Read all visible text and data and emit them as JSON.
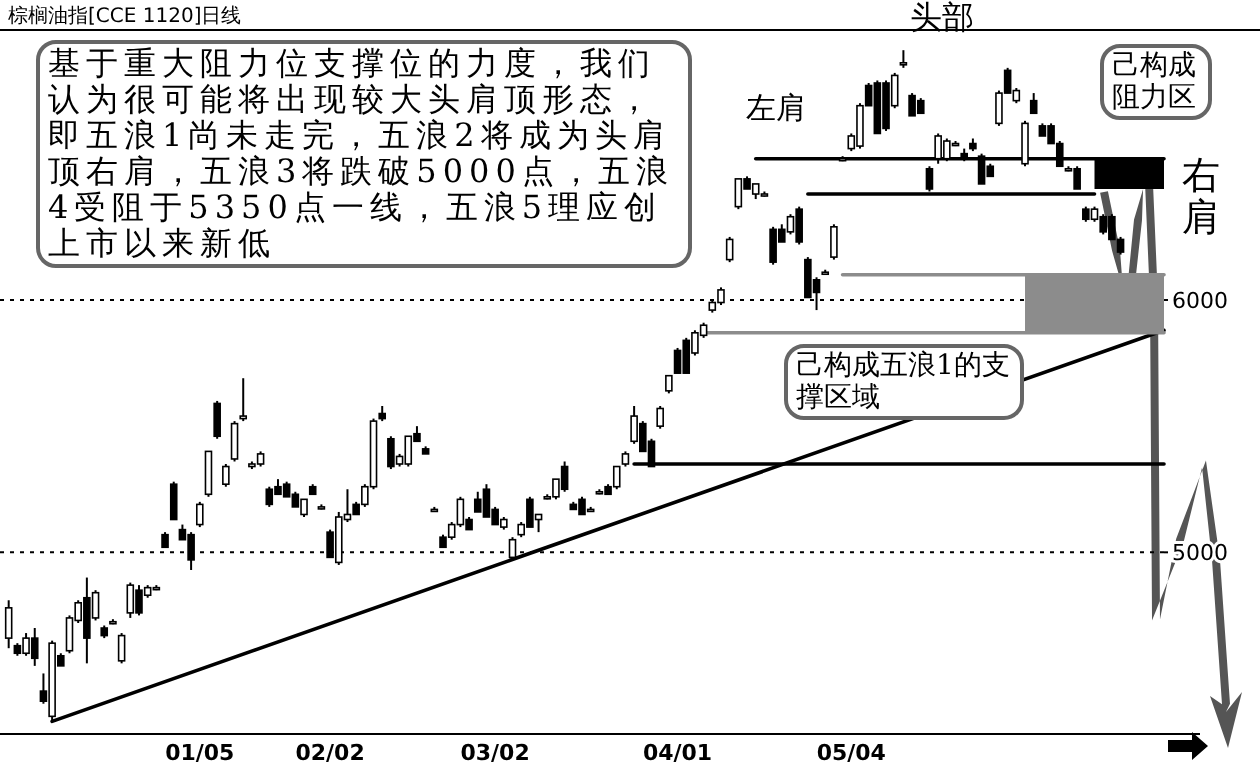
{
  "chart_data": {
    "type": "candlestick",
    "title": "棕榈油指[CCE 1120]日线",
    "categories": [
      null,
      null,
      null,
      null,
      null,
      null,
      null,
      null,
      null,
      null,
      null,
      null,
      null,
      null,
      null,
      null,
      null,
      null,
      null,
      null,
      null,
      null,
      "01/05",
      null,
      null,
      null,
      null,
      null,
      null,
      null,
      null,
      null,
      null,
      null,
      null,
      null,
      null,
      "02/02",
      null,
      null,
      null,
      null,
      null,
      null,
      null,
      null,
      null,
      null,
      null,
      null,
      null,
      null,
      null,
      null,
      null,
      null,
      "03/02",
      null,
      null,
      null,
      null,
      null,
      null,
      null,
      null,
      null,
      null,
      null,
      null,
      null,
      null,
      null,
      null,
      null,
      null,
      null,
      null,
      "04/01",
      null,
      null,
      null,
      null,
      null,
      null,
      null,
      null,
      null,
      null,
      null,
      null,
      null,
      null,
      null,
      null,
      null,
      null,
      null,
      "05/04",
      null,
      null,
      null,
      null,
      null,
      null,
      null,
      null,
      null,
      null,
      null,
      null,
      null,
      null,
      null,
      null,
      null,
      null,
      null,
      null,
      null,
      null,
      null,
      null,
      null,
      null,
      null,
      null,
      null,
      null,
      null,
      null,
      null,
      null,
      null,
      null
    ],
    "ohlc": [
      [
        4660,
        4810,
        4620,
        4780
      ],
      [
        4630,
        4640,
        4590,
        4600
      ],
      [
        4600,
        4680,
        4590,
        4660
      ],
      [
        4660,
        4700,
        4550,
        4580
      ],
      [
        4450,
        4520,
        4400,
        4410
      ],
      [
        4350,
        4650,
        4330,
        4640
      ],
      [
        4590,
        4600,
        4550,
        4550
      ],
      [
        4610,
        4750,
        4600,
        4740
      ],
      [
        4730,
        4810,
        4720,
        4800
      ],
      [
        4820,
        4900,
        4560,
        4660
      ],
      [
        4740,
        4850,
        4730,
        4840
      ],
      [
        4700,
        4710,
        4660,
        4670
      ],
      [
        4725,
        4735,
        4715,
        4725
      ],
      [
        4570,
        4680,
        4560,
        4670
      ],
      [
        4760,
        4880,
        4740,
        4870
      ],
      [
        4850,
        4870,
        4750,
        4760
      ],
      [
        4830,
        4870,
        4820,
        4860
      ],
      [
        4860,
        4870,
        4850,
        4860
      ],
      [
        5070,
        5080,
        5020,
        5020
      ],
      [
        5270,
        5280,
        5130,
        5130
      ],
      [
        5090,
        5110,
        5050,
        5050
      ],
      [
        5070,
        5080,
        4930,
        4970
      ],
      [
        5110,
        5200,
        5100,
        5190
      ],
      [
        5230,
        5400,
        5220,
        5400
      ],
      [
        5590,
        5600,
        5450,
        5460
      ],
      [
        5270,
        5350,
        5260,
        5340
      ],
      [
        5370,
        5520,
        5360,
        5510
      ],
      [
        5530,
        5690,
        5520,
        5540
      ],
      [
        5340,
        5360,
        5330,
        5350
      ],
      [
        5350,
        5400,
        5340,
        5390
      ],
      [
        5250,
        5260,
        5180,
        5190
      ],
      [
        5260,
        5290,
        5230,
        5230
      ],
      [
        5270,
        5280,
        5220,
        5220
      ],
      [
        5230,
        5240,
        5180,
        5180
      ],
      [
        5150,
        5210,
        5140,
        5210
      ],
      [
        5260,
        5270,
        5230,
        5230
      ],
      [
        5180,
        5190,
        5170,
        5180
      ],
      [
        5080,
        5090,
        4980,
        4980
      ],
      [
        4960,
        5160,
        4950,
        5140
      ],
      [
        5130,
        5250,
        5120,
        5150
      ],
      [
        5190,
        5200,
        5150,
        5150
      ],
      [
        5190,
        5270,
        5180,
        5260
      ],
      [
        5260,
        5530,
        5250,
        5520
      ],
      [
        5550,
        5580,
        5520,
        5530
      ],
      [
        5450,
        5460,
        5330,
        5340
      ],
      [
        5350,
        5390,
        5340,
        5380
      ],
      [
        5350,
        5460,
        5340,
        5460
      ],
      [
        5470,
        5500,
        5440,
        5440
      ],
      [
        5410,
        5420,
        5390,
        5390
      ],
      [
        5170,
        5180,
        5160,
        5170
      ],
      [
        5060,
        5070,
        5020,
        5020
      ],
      [
        5060,
        5120,
        5050,
        5110
      ],
      [
        5110,
        5220,
        5100,
        5210
      ],
      [
        5130,
        5140,
        5090,
        5090
      ],
      [
        5210,
        5240,
        5160,
        5160
      ],
      [
        5250,
        5270,
        5140,
        5140
      ],
      [
        5170,
        5180,
        5110,
        5110
      ],
      [
        5100,
        5140,
        5090,
        5130
      ],
      [
        4980,
        5060,
        4970,
        5050
      ],
      [
        5070,
        5120,
        5060,
        5110
      ],
      [
        5210,
        5220,
        5100,
        5100
      ],
      [
        5130,
        5150,
        5080,
        5150
      ],
      [
        5220,
        5230,
        5210,
        5220
      ],
      [
        5220,
        5290,
        5210,
        5290
      ],
      [
        5340,
        5360,
        5240,
        5250
      ],
      [
        5190,
        5200,
        5170,
        5170
      ],
      [
        5210,
        5220,
        5150,
        5150
      ],
      [
        5170,
        5180,
        5160,
        5170
      ],
      [
        5240,
        5250,
        5230,
        5240
      ],
      [
        5260,
        5270,
        5230,
        5230
      ],
      [
        5260,
        5340,
        5250,
        5340
      ],
      [
        5350,
        5400,
        5340,
        5390
      ],
      [
        5440,
        5580,
        5430,
        5540
      ],
      [
        5510,
        5520,
        5400,
        5400
      ],
      [
        5440,
        5450,
        5340,
        5340
      ],
      [
        5500,
        5580,
        5490,
        5570
      ],
      [
        5640,
        5700,
        5630,
        5700
      ],
      [
        5800,
        5810,
        5710,
        5710
      ],
      [
        5840,
        5850,
        5710,
        5710
      ],
      [
        5790,
        5880,
        5780,
        5870
      ],
      [
        5860,
        5910,
        5850,
        5900
      ],
      [
        5960,
        6000,
        5950,
        5990
      ],
      [
        5990,
        6050,
        5980,
        6040
      ],
      [
        6160,
        6250,
        6150,
        6240
      ],
      [
        6370,
        6480,
        6360,
        6480
      ],
      [
        6480,
        6490,
        6440,
        6440
      ],
      [
        6420,
        6460,
        6400,
        6460
      ],
      [
        6420,
        6430,
        6410,
        6420
      ],
      [
        6280,
        6290,
        6140,
        6150
      ],
      [
        6280,
        6300,
        6230,
        6230
      ],
      [
        6270,
        6340,
        6260,
        6330
      ],
      [
        6360,
        6370,
        6220,
        6230
      ],
      [
        6160,
        6170,
        6010,
        6010
      ],
      [
        6080,
        6090,
        5960,
        6030
      ],
      [
        6110,
        6120,
        6100,
        6110
      ],
      [
        6170,
        6300,
        6160,
        6290
      ],
      [
        6560,
        6570,
        6550,
        6560
      ],
      [
        6600,
        6660,
        6590,
        6650
      ],
      [
        6610,
        6780,
        6600,
        6770
      ],
      [
        6850,
        6860,
        6770,
        6770
      ],
      [
        6860,
        6870,
        6660,
        6660
      ],
      [
        6860,
        6870,
        6670,
        6680
      ],
      [
        6770,
        6900,
        6760,
        6890
      ],
      [
        6940,
        6990,
        6920,
        6940
      ],
      [
        6810,
        6820,
        6730,
        6730
      ],
      [
        6790,
        6800,
        6740,
        6740
      ],
      [
        6520,
        6530,
        6430,
        6440
      ],
      [
        6560,
        6660,
        6540,
        6650
      ],
      [
        6560,
        6640,
        6550,
        6630
      ],
      [
        6620,
        6630,
        6610,
        6620
      ],
      [
        6580,
        6600,
        6550,
        6560
      ],
      [
        6620,
        6640,
        6590,
        6600
      ],
      [
        6570,
        6580,
        6460,
        6460
      ],
      [
        6530,
        6540,
        6490,
        6490
      ],
      [
        6700,
        6830,
        6690,
        6820
      ],
      [
        6910,
        6920,
        6820,
        6820
      ],
      [
        6790,
        6840,
        6780,
        6830
      ],
      [
        6540,
        6710,
        6530,
        6700
      ],
      [
        6790,
        6820,
        6740,
        6740
      ],
      [
        6690,
        6700,
        6650,
        6650
      ],
      [
        6690,
        6700,
        6620,
        6620
      ],
      [
        6620,
        6630,
        6530,
        6530
      ],
      [
        6520,
        6530,
        6510,
        6520
      ],
      [
        6520,
        6530,
        6440,
        6440
      ],
      [
        6360,
        6370,
        6310,
        6320
      ],
      [
        6320,
        6370,
        6310,
        6360
      ],
      [
        6330,
        6340,
        6260,
        6270
      ],
      [
        6330,
        6340,
        6240,
        6240
      ],
      [
        6240,
        6250,
        6180,
        6190
      ],
      null,
      null,
      null,
      null,
      null
    ],
    "series": [
      {
        "type": "line",
        "color": "#000000",
        "values": [
          null,
          null,
          null,
          null,
          null,
          4330,
          null,
          null,
          null,
          null,
          null,
          null,
          null,
          null,
          null,
          null,
          null,
          null,
          null,
          null,
          null,
          null,
          null,
          null,
          null,
          null,
          null,
          null,
          null,
          null,
          null,
          null,
          null,
          null,
          null,
          null,
          null,
          null,
          null,
          null,
          null,
          null,
          null,
          null,
          null,
          null,
          null,
          null,
          null,
          null,
          null,
          null,
          null,
          null,
          null,
          null,
          null,
          null,
          null,
          null,
          null,
          null,
          null,
          null,
          null,
          null,
          null,
          null,
          null,
          null,
          null,
          null,
          null,
          null,
          null,
          null,
          null,
          null,
          null,
          null,
          null,
          null,
          null,
          null,
          null,
          null,
          null,
          null,
          null,
          null,
          null,
          null,
          null,
          null,
          null,
          null,
          null,
          null,
          null,
          null,
          null,
          null,
          null,
          null,
          null,
          null,
          null,
          null,
          null,
          null,
          null,
          null,
          null,
          null,
          null,
          null,
          null,
          null,
          null,
          null,
          null,
          null,
          null,
          null,
          null,
          null,
          null,
          null,
          null,
          null,
          null,
          null,
          null,
          5880
        ]
      },
      {
        "type": "line",
        "color": "#000000",
        "values": [
          null,
          null,
          null,
          null,
          null,
          null,
          null,
          null,
          null,
          null,
          null,
          null,
          null,
          null,
          null,
          null,
          null,
          null,
          null,
          null,
          null,
          null,
          null,
          null,
          null,
          null,
          null,
          null,
          null,
          null,
          null,
          null,
          null,
          null,
          null,
          null,
          null,
          null,
          null,
          null,
          null,
          null,
          null,
          null,
          null,
          null,
          null,
          null,
          null,
          null,
          null,
          null,
          null,
          null,
          null,
          null,
          null,
          null,
          null,
          null,
          null,
          null,
          null,
          null,
          null,
          null,
          null,
          null,
          null,
          null,
          null,
          null,
          null,
          null,
          null,
          null,
          null,
          null,
          null,
          null,
          null,
          null,
          null,
          null,
          null,
          null,
          6560,
          6560,
          6560,
          6560,
          6560,
          6560,
          6560,
          6560,
          6560,
          6560,
          6560,
          6560,
          6560,
          6560,
          6560,
          6560,
          6560,
          6560,
          6560,
          6560,
          6560,
          6560,
          6560,
          6560,
          6560,
          6560,
          6560,
          6560,
          6560,
          6560,
          6560,
          6560,
          6560,
          6560,
          6560,
          6560,
          6560,
          6560,
          6560,
          6560,
          6560,
          6560,
          6560,
          6560,
          6560,
          6560,
          6560,
          6560
        ],
        "upper": [
          null,
          null,
          null,
          null,
          null,
          null,
          null,
          null,
          null,
          null,
          null,
          null,
          null,
          null,
          null,
          null,
          null,
          null,
          null,
          null,
          null,
          null,
          null,
          null,
          null,
          null,
          null,
          null,
          null,
          null,
          null,
          null,
          null,
          null,
          null,
          null,
          null,
          null,
          null,
          null,
          null,
          null,
          null,
          null,
          null,
          null,
          null,
          null,
          null,
          null,
          null,
          null,
          null,
          null,
          null,
          null,
          null,
          null,
          null,
          null,
          null,
          null,
          null,
          null,
          null,
          null,
          null,
          null,
          null,
          null,
          null,
          null,
          null,
          null,
          null,
          null,
          null,
          null,
          null,
          null,
          null,
          null,
          null,
          null,
          null,
          null,
          null,
          null,
          null,
          null,
          null,
          null,
          null,
          null,
          null,
          null,
          null,
          null,
          null,
          null,
          null,
          null,
          null,
          null,
          null,
          null,
          null,
          null,
          null,
          null,
          null,
          null,
          null,
          null,
          null,
          null,
          null,
          null,
          null,
          null,
          null,
          null,
          null,
          null,
          null,
          6560,
          6560,
          6560,
          6560,
          6560,
          6560,
          6560,
          6560,
          6560
        ],
        "lower": [
          null,
          null,
          null,
          null,
          null,
          null,
          null,
          null,
          null,
          null,
          null,
          null,
          null,
          null,
          null,
          null,
          null,
          null,
          null,
          null,
          null,
          null,
          null,
          null,
          null,
          null,
          null,
          null,
          null,
          null,
          null,
          null,
          null,
          null,
          null,
          null,
          null,
          null,
          null,
          null,
          null,
          null,
          null,
          null,
          null,
          null,
          null,
          null,
          null,
          null,
          null,
          null,
          null,
          null,
          null,
          null,
          null,
          null,
          null,
          null,
          null,
          null,
          null,
          null,
          null,
          null,
          null,
          null,
          null,
          null,
          null,
          null,
          null,
          null,
          null,
          null,
          null,
          null,
          null,
          null,
          null,
          null,
          null,
          null,
          null,
          null,
          null,
          null,
          null,
          null,
          null,
          null,
          null,
          null,
          null,
          null,
          null,
          null,
          null,
          null,
          null,
          null,
          null,
          null,
          null,
          null,
          null,
          null,
          null,
          null,
          null,
          null,
          null,
          null,
          null,
          null,
          null,
          null,
          null,
          null,
          null,
          null,
          null,
          null,
          null,
          6440,
          6440,
          6440,
          6440,
          6440,
          6440,
          6440,
          6440,
          6440
        ]
      },
      {
        "type": "line",
        "color": "#000000",
        "values": [
          null,
          null,
          null,
          null,
          null,
          null,
          null,
          null,
          null,
          null,
          null,
          null,
          null,
          null,
          null,
          null,
          null,
          null,
          null,
          null,
          null,
          null,
          null,
          null,
          null,
          null,
          null,
          null,
          null,
          null,
          null,
          null,
          null,
          null,
          null,
          null,
          null,
          null,
          null,
          null,
          null,
          null,
          null,
          null,
          null,
          null,
          null,
          null,
          null,
          null,
          null,
          null,
          null,
          null,
          null,
          null,
          null,
          null,
          null,
          null,
          null,
          null,
          null,
          null,
          null,
          null,
          null,
          null,
          null,
          null,
          null,
          null,
          null,
          null,
          null,
          null,
          null,
          null,
          null,
          null,
          null,
          null,
          null,
          null,
          null,
          null,
          null,
          null,
          null,
          null,
          null,
          null,
          6420,
          6420,
          6420,
          6420,
          6420,
          6420,
          6420,
          6420,
          6420,
          6420,
          6420,
          6420,
          6420,
          6420,
          6420,
          6420,
          6420,
          6420,
          6420,
          6420,
          6420,
          6420,
          6420,
          6420,
          6420,
          6420,
          6420,
          6420,
          6420,
          6420,
          6420,
          6420,
          6420,
          6420,
          null,
          null,
          null,
          null,
          null,
          null,
          null,
          null
        ]
      },
      {
        "type": "line",
        "color": "#8c8c8c",
        "values": [
          null,
          null,
          null,
          null,
          null,
          null,
          null,
          null,
          null,
          null,
          null,
          null,
          null,
          null,
          null,
          null,
          null,
          null,
          null,
          null,
          null,
          null,
          null,
          null,
          null,
          null,
          null,
          null,
          null,
          null,
          null,
          null,
          null,
          null,
          null,
          null,
          null,
          null,
          null,
          null,
          null,
          null,
          null,
          null,
          null,
          null,
          null,
          null,
          null,
          null,
          null,
          null,
          null,
          null,
          null,
          null,
          null,
          null,
          null,
          null,
          null,
          null,
          null,
          null,
          null,
          null,
          null,
          null,
          null,
          null,
          null,
          null,
          null,
          null,
          null,
          null,
          null,
          null,
          null,
          null,
          null,
          null,
          null,
          null,
          null,
          null,
          null,
          null,
          null,
          null,
          null,
          null,
          null,
          null,
          null,
          null,
          6100,
          6100,
          6100,
          6100,
          6100,
          6100,
          6100,
          6100,
          6100,
          6100,
          6100,
          6100,
          6100,
          6100,
          6100,
          6100,
          6100,
          6100,
          6100,
          6100,
          6100,
          6100,
          6100,
          6100,
          6100,
          6100,
          6100,
          6100,
          6100,
          6100,
          6100,
          6100,
          6100,
          6100,
          6100,
          6100,
          6100,
          6100
        ],
        "upper": [
          null,
          null,
          null,
          null,
          null,
          null,
          null,
          null,
          null,
          null,
          null,
          null,
          null,
          null,
          null,
          null,
          null,
          null,
          null,
          null,
          null,
          null,
          null,
          null,
          null,
          null,
          null,
          null,
          null,
          null,
          null,
          null,
          null,
          null,
          null,
          null,
          null,
          null,
          null,
          null,
          null,
          null,
          null,
          null,
          null,
          null,
          null,
          null,
          null,
          null,
          null,
          null,
          null,
          null,
          null,
          null,
          null,
          null,
          null,
          null,
          null,
          null,
          null,
          null,
          null,
          null,
          null,
          null,
          null,
          null,
          null,
          null,
          null,
          null,
          null,
          null,
          null,
          null,
          null,
          null,
          null,
          null,
          null,
          null,
          null,
          null,
          null,
          null,
          null,
          null,
          null,
          null,
          null,
          null,
          null,
          null,
          null,
          null,
          null,
          null,
          null,
          null,
          null,
          null,
          null,
          null,
          null,
          null,
          null,
          null,
          null,
          null,
          null,
          null,
          null,
          null,
          null,
          6100,
          6100,
          6100,
          6100,
          6100,
          6100,
          6100,
          6100,
          6100,
          6100,
          6100,
          6100,
          6100,
          6100,
          6100,
          6100,
          6100
        ],
        "lower": [
          null,
          null,
          null,
          null,
          null,
          null,
          null,
          null,
          null,
          null,
          null,
          null,
          null,
          null,
          null,
          null,
          null,
          null,
          null,
          null,
          null,
          null,
          null,
          null,
          null,
          null,
          null,
          null,
          null,
          null,
          null,
          null,
          null,
          null,
          null,
          null,
          null,
          null,
          null,
          null,
          null,
          null,
          null,
          null,
          null,
          null,
          null,
          null,
          null,
          null,
          null,
          null,
          null,
          null,
          null,
          null,
          null,
          null,
          null,
          null,
          null,
          null,
          null,
          null,
          null,
          null,
          null,
          null,
          null,
          null,
          null,
          null,
          null,
          null,
          null,
          null,
          null,
          null,
          null,
          null,
          null,
          null,
          null,
          null,
          null,
          null,
          null,
          null,
          null,
          null,
          null,
          null,
          null,
          null,
          null,
          null,
          null,
          null,
          null,
          null,
          null,
          null,
          null,
          null,
          null,
          null,
          null,
          null,
          null,
          null,
          null,
          null,
          null,
          null,
          null,
          null,
          null,
          5870,
          5870,
          5870,
          5870,
          5870,
          5870,
          5870,
          5870,
          5870,
          5870,
          5870,
          5870,
          5870,
          5870,
          5870,
          5870,
          5870
        ]
      },
      {
        "type": "line",
        "color": "#8c8c8c",
        "values": [
          null,
          null,
          null,
          null,
          null,
          null,
          null,
          null,
          null,
          null,
          null,
          null,
          null,
          null,
          null,
          null,
          null,
          null,
          null,
          null,
          null,
          null,
          null,
          null,
          null,
          null,
          null,
          null,
          null,
          null,
          null,
          null,
          null,
          null,
          null,
          null,
          null,
          null,
          null,
          null,
          null,
          null,
          null,
          null,
          null,
          null,
          null,
          null,
          null,
          null,
          null,
          null,
          null,
          null,
          null,
          null,
          null,
          null,
          null,
          null,
          null,
          null,
          null,
          null,
          null,
          null,
          null,
          null,
          null,
          null,
          null,
          null,
          null,
          null,
          null,
          null,
          null,
          null,
          null,
          null,
          5870,
          5870,
          5870,
          5870,
          5870,
          5870,
          5870,
          5870,
          5870,
          5870,
          5870,
          5870,
          5870,
          5870,
          5870,
          5870,
          5870,
          5870,
          5870,
          5870,
          5870,
          5870,
          5870,
          5870,
          5870,
          5870,
          5870,
          5870,
          5870,
          5870,
          5870,
          5870,
          5870,
          5870,
          5870,
          5870,
          5870,
          5870,
          5870,
          5870,
          5870,
          5870,
          5870,
          5870,
          5870,
          5870,
          5870,
          5870,
          5870,
          5870,
          5870,
          5870,
          5870,
          5870
        ]
      },
      {
        "type": "line",
        "color": "#000000",
        "values": [
          null,
          null,
          null,
          null,
          null,
          null,
          null,
          null,
          null,
          null,
          null,
          null,
          null,
          null,
          null,
          null,
          null,
          null,
          null,
          null,
          null,
          null,
          null,
          null,
          null,
          null,
          null,
          null,
          null,
          null,
          null,
          null,
          null,
          null,
          null,
          null,
          null,
          null,
          null,
          null,
          null,
          null,
          null,
          null,
          null,
          null,
          null,
          null,
          null,
          null,
          null,
          null,
          null,
          null,
          null,
          null,
          null,
          null,
          null,
          null,
          null,
          null,
          null,
          null,
          null,
          null,
          null,
          null,
          null,
          null,
          null,
          null,
          5350,
          5350,
          5350,
          5350,
          5350,
          5350,
          5350,
          5350,
          5350,
          5350,
          5350,
          5350,
          5350,
          5350,
          5350,
          5350,
          5350,
          5350,
          5350,
          5350,
          5350,
          5350,
          5350,
          5350,
          5350,
          5350,
          5350,
          5350,
          5350,
          5350,
          5350,
          5350,
          5350,
          5350,
          5350,
          5350,
          5350,
          5350,
          5350,
          5350,
          5350,
          5350,
          5350,
          5350,
          5350,
          5350,
          5350,
          5350,
          5350,
          5350,
          5350,
          5350,
          5350,
          5350,
          5350,
          5350,
          5350,
          5350,
          5350,
          5350,
          5350,
          5350
        ]
      }
    ],
    "ylim": [
      4280,
      7070
    ],
    "yticks": [
      5000,
      6000
    ],
    "ref_lines": [
      {
        "axis": "y",
        "value": 6000,
        "color": "#000000",
        "line_style": "dotted"
      },
      {
        "axis": "y",
        "value": 5000,
        "color": "#000000",
        "line_style": "dotted"
      }
    ],
    "annotations": [
      "基于重大阻力位支撑位的力度，我们认为很可能将出现较大头肩顶形态，即五浪1尚未走完，五浪2将成为头肩顶右肩，五浪3将跌破5000点，五浪4受阻于5350点一线，五浪5理应创上市以来新低",
      "头部",
      "左肩",
      "己构成阻力区",
      "右肩",
      "己构成五浪1的支撑区域"
    ]
  }
}
